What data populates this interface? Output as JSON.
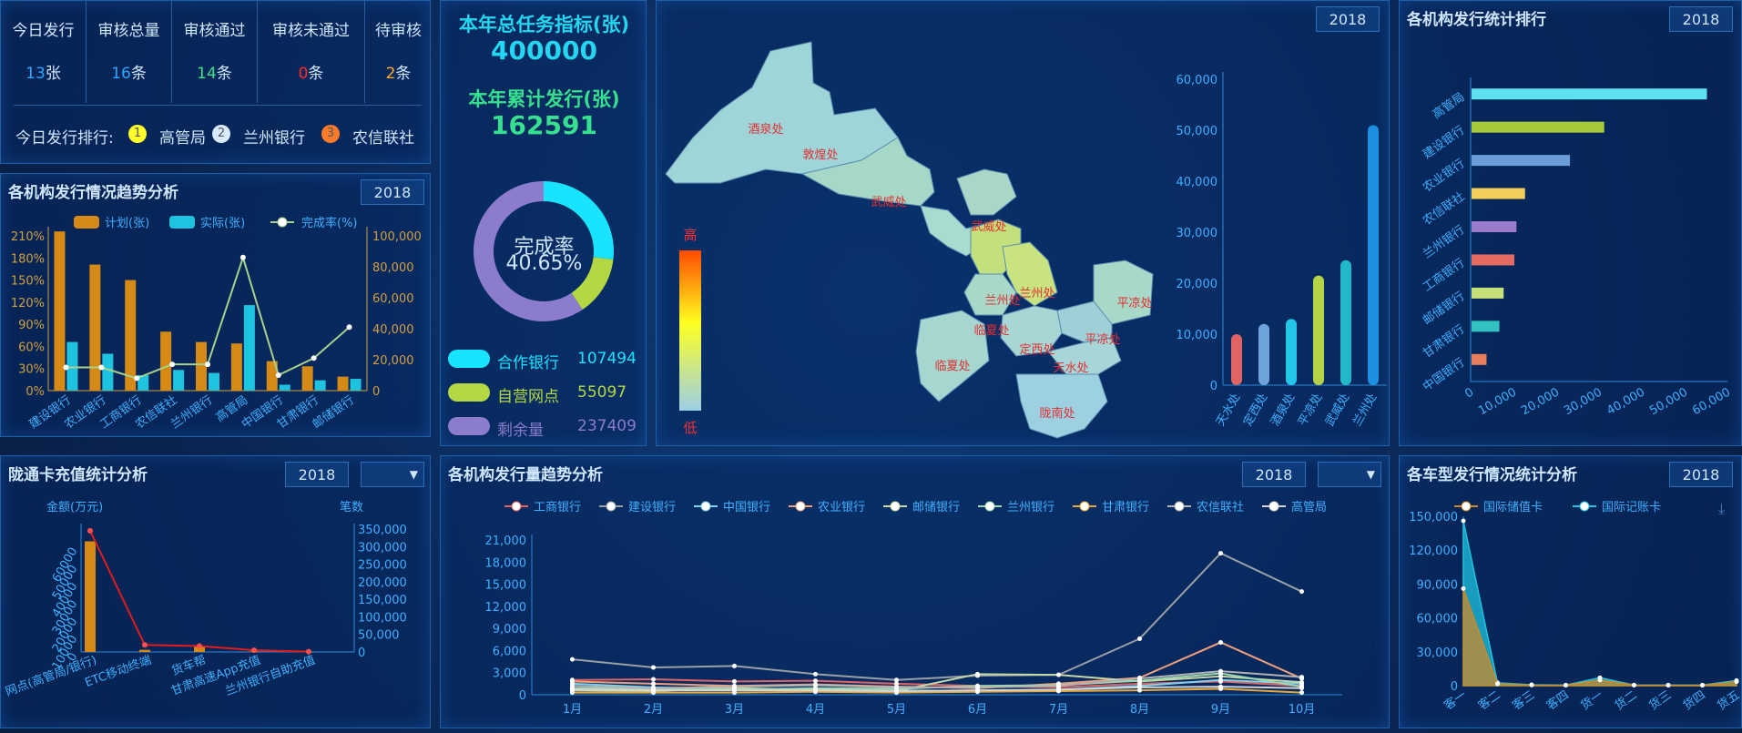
{
  "stats": {
    "labels": [
      "今日发行",
      "审核总量",
      "审核通过",
      "审核未通过",
      "待审核"
    ],
    "values": [
      "13",
      "16",
      "14",
      "0",
      "2"
    ],
    "units": [
      "张",
      "条",
      "条",
      "条",
      "条"
    ],
    "value_colors": [
      "#2aa6ff",
      "#2aa6ff",
      "#3ee08c",
      "#ff2a2a",
      "#ffb02a"
    ],
    "rank_label": "今日发行排行:",
    "rank_items": [
      {
        "num": "1",
        "name": "高管局",
        "color": "#ffff2a"
      },
      {
        "num": "2",
        "name": "兰州银行",
        "color": "#d7ecff"
      },
      {
        "num": "3",
        "name": "农信联社",
        "color": "#ff7a2a"
      }
    ]
  },
  "task": {
    "title1": "本年总任务指标(张)",
    "value1": "400000",
    "title2": "本年累计发行(张)",
    "value2": "162591",
    "center_label": "完成率",
    "center_value": "40.65%",
    "legend": [
      {
        "name": "合作银行",
        "value": "107494",
        "color": "#18e4ff"
      },
      {
        "name": "自营网点",
        "value": "55097",
        "color": "#b3d843"
      },
      {
        "name": "剩余量",
        "value": "237409",
        "color": "#8c7ccd"
      }
    ]
  },
  "map": {
    "year": "2018",
    "scale_high": "高",
    "scale_low": "低",
    "labels": [
      "酒泉处",
      "敦煌处",
      "武威处",
      "武威处",
      "兰州处",
      "兰州处",
      "平凉处",
      "临夏处",
      "平凉处",
      "定西处",
      "临夏处",
      "天水处",
      "陇南处"
    ]
  },
  "trend": {
    "title": "各机构发行情况趋势分析",
    "year": "2018"
  },
  "rank": {
    "title": "各机构发行统计排行",
    "year": "2018"
  },
  "card": {
    "title": "陇通卡充值统计分析",
    "year": "2018",
    "select": "▼",
    "yl_label": "金额(万元)",
    "yr_label": "笔数"
  },
  "org": {
    "title": "各机构发行量趋势分析",
    "year": "2018",
    "select": "▼"
  },
  "vehicle": {
    "title": "各车型发行情况统计分析",
    "year": "2018"
  },
  "chart_data": [
    {
      "id": "trend",
      "type": "bar",
      "title": "各机构发行情况趋势分析",
      "categories": [
        "建设银行",
        "农业银行",
        "工商银行",
        "农信联社",
        "兰州银行",
        "高管局",
        "中国银行",
        "甘肃银行",
        "邮储银行"
      ],
      "series": [
        {
          "name": "计划(张)",
          "type": "bar",
          "axis": "left",
          "color": "#d48a14",
          "values": [
            216,
            171,
            150,
            80,
            66,
            64,
            40,
            33,
            19
          ]
        },
        {
          "name": "实际(张)",
          "type": "bar",
          "axis": "left",
          "color": "#1ec3e0",
          "values": [
            66,
            50,
            21,
            28,
            24,
            116,
            8,
            14,
            16
          ]
        },
        {
          "name": "完成率(%)",
          "type": "line",
          "axis": "right",
          "color": "#a9d18e",
          "values": [
            15000,
            15000,
            8000,
            17000,
            17000,
            86000,
            10000,
            21000,
            41000
          ]
        }
      ],
      "yleft": {
        "ticks": [
          "0%",
          "30%",
          "60%",
          "90%",
          "120%",
          "150%",
          "180%",
          "210%"
        ],
        "max": 210
      },
      "yright": {
        "ticks": [
          "0",
          "20,000",
          "40,000",
          "60,000",
          "80,000",
          "100,000"
        ],
        "max": 100000
      }
    },
    {
      "id": "map_bars",
      "type": "bar",
      "categories": [
        "天水处",
        "定西处",
        "酒泉处",
        "平凉处",
        "武威处",
        "兰州处"
      ],
      "values": [
        10000,
        12000,
        13000,
        21500,
        24500,
        51000
      ],
      "colors": [
        "#e06464",
        "#6fa3dc",
        "#23c6e8",
        "#b5d345",
        "#21b9c8",
        "#1e8ee0"
      ],
      "ylim": [
        0,
        60000
      ],
      "yticks": [
        "0",
        "10,000",
        "20,000",
        "30,000",
        "40,000",
        "50,000",
        "60,000"
      ]
    },
    {
      "id": "rank",
      "type": "bar",
      "orientation": "horizontal",
      "categories": [
        "高管局",
        "建设银行",
        "农业银行",
        "农信联社",
        "兰州银行",
        "工商银行",
        "邮储银行",
        "甘肃银行",
        "中国银行"
      ],
      "values": [
        55000,
        31000,
        23000,
        12500,
        10500,
        10000,
        7500,
        6500,
        3500
      ],
      "colors": [
        "#5ee1f0",
        "#a6c93c",
        "#6b9ed8",
        "#f2cf5a",
        "#9b7ccc",
        "#e36b62",
        "#c6e07a",
        "#33c2c2",
        "#e87d5c"
      ],
      "xlim": [
        0,
        60000
      ],
      "xticks": [
        "0",
        "10,000",
        "20,000",
        "30,000",
        "40,000",
        "50,000",
        "60,000"
      ]
    },
    {
      "id": "card",
      "type": "bar",
      "categories": [
        "网点(高管局/银行)",
        "ETC移动终端",
        "货车帮",
        "甘肃高速App充值",
        "兰州银行自助充值"
      ],
      "bar_values": [
        63000,
        1200,
        3000,
        300,
        200
      ],
      "line_values": [
        345000,
        20000,
        17000,
        5000,
        1000
      ],
      "yleft": {
        "ticks": [
          "0",
          "10000",
          "20000",
          "30000",
          "40000",
          "50000",
          "60000"
        ],
        "max": 70000
      },
      "yright": {
        "ticks": [
          "0",
          "50,000",
          "100,000",
          "150,000",
          "200,000",
          "250,000",
          "300,000",
          "350,000"
        ],
        "max": 350000
      }
    },
    {
      "id": "org",
      "type": "line",
      "x": [
        "1月",
        "2月",
        "3月",
        "4月",
        "5月",
        "6月",
        "7月",
        "8月",
        "9月",
        "10月"
      ],
      "ylim": [
        0,
        21000
      ],
      "yticks": [
        "0",
        "3,000",
        "6,000",
        "9,000",
        "12,000",
        "15,000",
        "18,000",
        "21,000"
      ],
      "series": [
        {
          "name": "工商银行",
          "color": "#e06464",
          "values": [
            2000,
            2100,
            1800,
            1900,
            1500,
            1200,
            1000,
            1500,
            1800,
            1200
          ]
        },
        {
          "name": "建设银行",
          "color": "#9aa0a6",
          "values": [
            4800,
            3700,
            3900,
            2800,
            2000,
            2600,
            2700,
            7600,
            19200,
            14000
          ]
        },
        {
          "name": "中国银行",
          "color": "#7fd0e8",
          "values": [
            1500,
            1000,
            800,
            700,
            600,
            500,
            700,
            1200,
            2000,
            1500
          ]
        },
        {
          "name": "农业银行",
          "color": "#f0a07a",
          "values": [
            1800,
            1500,
            1200,
            1400,
            1100,
            900,
            1500,
            2300,
            7100,
            2200
          ]
        },
        {
          "name": "邮储银行",
          "color": "#c6d8a5",
          "values": [
            600,
            500,
            900,
            700,
            500,
            2800,
            2700,
            1800,
            2500,
            1700
          ]
        },
        {
          "name": "兰州银行",
          "color": "#9ed6b0",
          "values": [
            900,
            800,
            700,
            900,
            800,
            1200,
            1300,
            1900,
            2900,
            1100
          ]
        },
        {
          "name": "甘肃银行",
          "color": "#e6a83a",
          "values": [
            300,
            300,
            300,
            400,
            300,
            400,
            500,
            600,
            800,
            300
          ]
        },
        {
          "name": "农信联社",
          "color": "#b3b3b3",
          "values": [
            1200,
            900,
            1100,
            1300,
            1000,
            1000,
            1200,
            2200,
            3200,
            2400
          ]
        },
        {
          "name": "高管局",
          "color": "#d5d5d5",
          "values": [
            700,
            600,
            600,
            600,
            500,
            600,
            700,
            1000,
            1100,
            900
          ]
        }
      ]
    },
    {
      "id": "vehicle",
      "type": "area",
      "x": [
        "客一",
        "客二",
        "客三",
        "客四",
        "货一",
        "货二",
        "货三",
        "货四",
        "货五"
      ],
      "ylim": [
        0,
        150000
      ],
      "yticks": [
        "0",
        "30,000",
        "60,000",
        "90,000",
        "120,000",
        "150,000"
      ],
      "series": [
        {
          "name": "国际储值卡",
          "color": "#c98a2a",
          "values": [
            86000,
            1500,
            500,
            300,
            5000,
            400,
            300,
            300,
            3500
          ]
        },
        {
          "name": "国际记账卡",
          "color": "#1ec3e0",
          "values": [
            146000,
            2500,
            800,
            500,
            7000,
            600,
            500,
            500,
            4500
          ]
        }
      ]
    }
  ]
}
